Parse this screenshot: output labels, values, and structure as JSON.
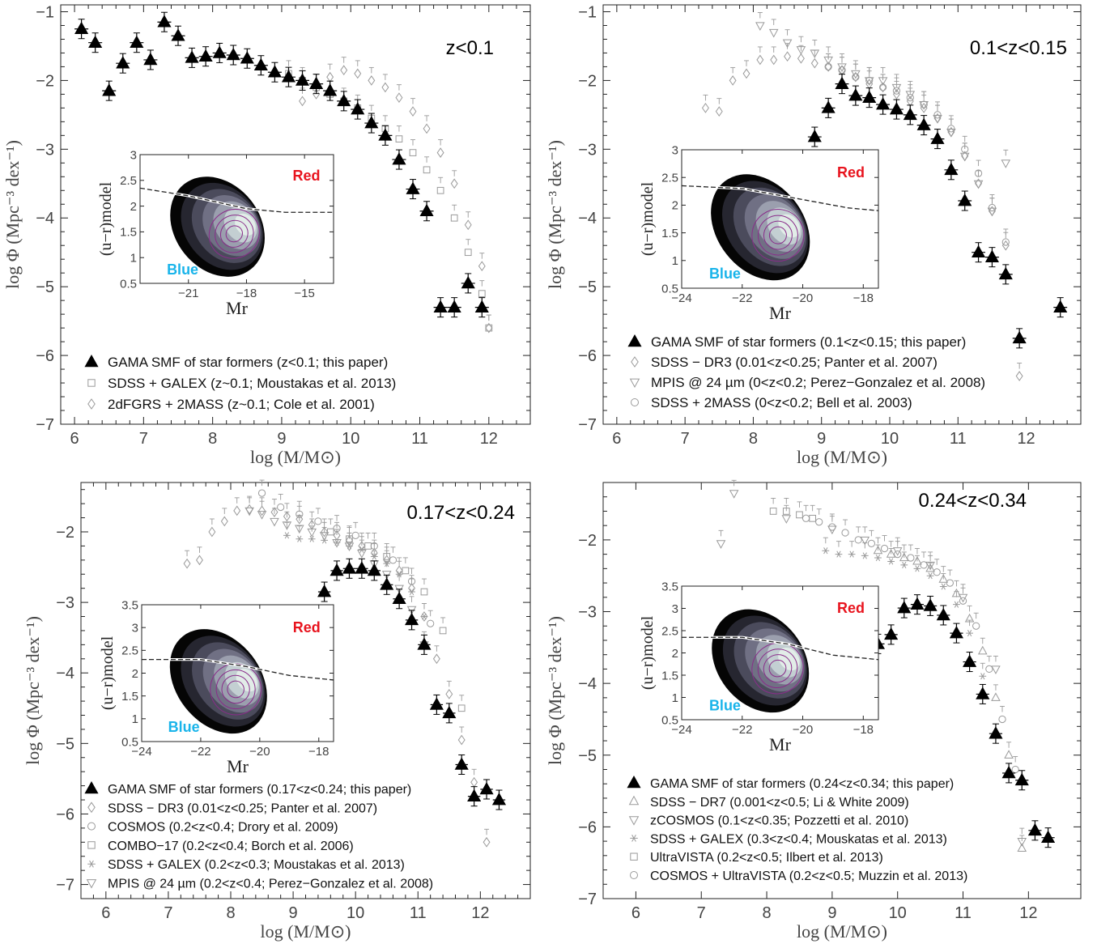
{
  "chart_data": [
    {
      "type": "scatter",
      "redshift_label": "z<0.1",
      "xlabel": "log (M/M⊙)",
      "ylabel": "log Φ (Mpc⁻³ dex⁻¹)",
      "xlim": [
        5.8,
        12.6
      ],
      "ylim": [
        -7.0,
        -0.9
      ],
      "xticks": [
        6,
        7,
        8,
        9,
        10,
        11,
        12
      ],
      "yticks": [
        -1,
        -2,
        -3,
        -4,
        -5,
        -6,
        -7
      ],
      "legend_position": "bottom-left",
      "series": [
        {
          "name": "GAMA SMF of star formers (z<0.1; this paper)",
          "marker": "filled-triangle",
          "x": [
            6.1,
            6.3,
            6.5,
            6.7,
            6.9,
            7.1,
            7.3,
            7.5,
            7.7,
            7.9,
            8.1,
            8.3,
            8.5,
            8.7,
            8.9,
            9.1,
            9.3,
            9.5,
            9.7,
            9.9,
            10.1,
            10.3,
            10.5,
            10.7,
            10.9,
            11.1,
            11.3,
            11.5,
            11.7,
            11.9
          ],
          "y": [
            -1.25,
            -1.45,
            -2.15,
            -1.75,
            -1.45,
            -1.7,
            -1.15,
            -1.35,
            -1.67,
            -1.65,
            -1.6,
            -1.63,
            -1.68,
            -1.78,
            -1.88,
            -1.95,
            -2.0,
            -2.05,
            -2.15,
            -2.3,
            -2.42,
            -2.62,
            -2.8,
            -3.15,
            -3.58,
            -3.9,
            -5.3,
            -5.3,
            -4.95,
            -5.3
          ]
        },
        {
          "name": "SDSS + GALEX (z~0.1; Moustakas et al. 2013)",
          "marker": "open-square",
          "x": [
            9.1,
            9.3,
            9.5,
            9.7,
            9.9,
            10.1,
            10.3,
            10.5,
            10.7,
            10.9,
            11.1,
            11.3,
            11.5,
            11.7,
            11.9,
            12.0
          ],
          "y": [
            -1.9,
            -2.0,
            -2.1,
            -2.2,
            -2.3,
            -2.4,
            -2.55,
            -2.7,
            -2.85,
            -3.05,
            -3.3,
            -3.6,
            -4.0,
            -4.5,
            -5.1,
            -5.6
          ]
        },
        {
          "name": "2dFGRS + 2MASS (z~0.1; Cole et al. 2001)",
          "marker": "open-diamond",
          "x": [
            9.3,
            9.5,
            9.7,
            9.9,
            10.1,
            10.3,
            10.5,
            10.7,
            10.9,
            11.1,
            11.3,
            11.5,
            11.7,
            11.9,
            12.0
          ],
          "y": [
            -2.3,
            -2.2,
            -1.95,
            -1.85,
            -1.9,
            -2.0,
            -2.1,
            -2.25,
            -2.45,
            -2.7,
            -3.05,
            -3.5,
            -4.1,
            -4.7,
            -5.6
          ]
        }
      ],
      "inset": {
        "xlabel": "Mr",
        "ylabel": "(u−r)model",
        "xlim": [
          -23.5,
          -13.5
        ],
        "ylim": [
          0.5,
          3.0
        ],
        "xticks": [
          -21,
          -18,
          -15
        ],
        "yticks": [
          0.5,
          1,
          1.5,
          2,
          2.5,
          3
        ],
        "divider": {
          "x": [
            -23.5,
            -21,
            -18,
            -16,
            -13.5
          ],
          "y": [
            2.35,
            2.2,
            1.95,
            1.88,
            1.88
          ]
        },
        "label_red": "Red",
        "label_blue": "Blue"
      }
    },
    {
      "type": "scatter",
      "redshift_label": "0.1<z<0.15",
      "xlabel": "log (M/M⊙)",
      "ylabel": "log Φ (Mpc⁻³ dex⁻¹)",
      "xlim": [
        5.8,
        12.8
      ],
      "ylim": [
        -7.0,
        -0.9
      ],
      "xticks": [
        6,
        7,
        8,
        9,
        10,
        11,
        12
      ],
      "yticks": [
        -1,
        -2,
        -3,
        -4,
        -5,
        -6,
        -7
      ],
      "legend_position": "bottom-left",
      "series": [
        {
          "name": "GAMA SMF of star formers (0.1<z<0.15; this paper)",
          "marker": "filled-triangle",
          "x": [
            8.9,
            9.1,
            9.3,
            9.5,
            9.7,
            9.9,
            10.1,
            10.3,
            10.5,
            10.7,
            10.9,
            11.1,
            11.3,
            11.5,
            11.7,
            11.9,
            12.5
          ],
          "y": [
            -2.82,
            -2.4,
            -2.05,
            -2.22,
            -2.25,
            -2.35,
            -2.42,
            -2.5,
            -2.65,
            -2.85,
            -3.3,
            -3.75,
            -4.5,
            -4.57,
            -4.82,
            -5.75,
            -5.3
          ]
        },
        {
          "name": "SDSS − DR3 (0.01<z<0.25; Panter et al. 2007)",
          "marker": "open-diamond",
          "x": [
            7.3,
            7.5,
            7.7,
            7.9,
            8.1,
            8.3,
            8.5,
            8.7,
            8.9,
            9.1,
            9.3,
            9.5,
            9.7,
            9.9,
            10.1,
            10.3,
            10.5,
            10.7,
            10.9,
            11.1,
            11.3,
            11.5,
            11.7,
            11.9
          ],
          "y": [
            -2.4,
            -2.45,
            -2.0,
            -1.9,
            -1.7,
            -1.7,
            -1.65,
            -1.68,
            -1.75,
            -1.8,
            -1.85,
            -1.95,
            -2.05,
            -2.1,
            -2.2,
            -2.3,
            -2.4,
            -2.55,
            -2.75,
            -3.1,
            -3.5,
            -3.9,
            -4.4,
            -6.3
          ]
        },
        {
          "name": "MPIS @ 24 µm (0<z<0.2; Perez−Gonzalez et al. 2008)",
          "marker": "open-triangle-down",
          "x": [
            8.1,
            8.3,
            8.5,
            8.7,
            8.9,
            9.1,
            9.3,
            9.5,
            9.7,
            9.9,
            10.1,
            10.3,
            10.5,
            10.7,
            10.9,
            11.1,
            11.3,
            11.5,
            11.7
          ],
          "y": [
            -1.2,
            -1.3,
            -1.45,
            -1.55,
            -1.6,
            -1.7,
            -1.8,
            -1.9,
            -2.0,
            -2.0,
            -2.1,
            -2.2,
            -2.35,
            -2.55,
            -2.75,
            -3.1,
            -3.5,
            -3.9,
            -3.2
          ]
        },
        {
          "name": "SDSS + 2MASS (0<z<0.2; Bell et al. 2003)",
          "marker": "open-circle",
          "x": [
            9.1,
            9.3,
            9.5,
            9.7,
            9.9,
            10.1,
            10.3,
            10.5,
            10.7,
            10.9,
            11.1,
            11.3,
            11.5,
            11.7
          ],
          "y": [
            -1.8,
            -1.85,
            -1.95,
            -2.0,
            -2.1,
            -2.15,
            -2.25,
            -2.35,
            -2.5,
            -2.7,
            -3.0,
            -3.35,
            -3.85,
            -4.35
          ]
        }
      ],
      "inset": {
        "xlabel": "Mr",
        "ylabel": "(u−r)model",
        "xlim": [
          -24,
          -17.5
        ],
        "ylim": [
          0.5,
          3.0
        ],
        "xticks": [
          -24,
          -22,
          -20,
          -18
        ],
        "yticks": [
          0.5,
          1,
          1.5,
          2,
          2.5,
          3
        ],
        "divider": {
          "x": [
            -24,
            -22,
            -20,
            -18.5,
            -17.5
          ],
          "y": [
            2.35,
            2.3,
            2.1,
            1.95,
            1.9
          ]
        },
        "label_red": "Red",
        "label_blue": "Blue"
      }
    },
    {
      "type": "scatter",
      "redshift_label": "0.17<z<0.24",
      "xlabel": "log (M/M⊙)",
      "ylabel": "log Φ (Mpc⁻³ dex⁻¹)",
      "xlim": [
        5.6,
        12.8
      ],
      "ylim": [
        -7.2,
        -1.3
      ],
      "xticks": [
        6,
        7,
        8,
        9,
        10,
        11,
        12
      ],
      "yticks": [
        -2,
        -3,
        -4,
        -5,
        -6,
        -7
      ],
      "legend_position": "bottom-left",
      "series": [
        {
          "name": "GAMA SMF of star formers (0.17<z<0.24; this paper)",
          "marker": "filled-triangle",
          "x": [
            9.5,
            9.7,
            9.9,
            10.1,
            10.3,
            10.5,
            10.7,
            10.9,
            11.1,
            11.3,
            11.5,
            11.7,
            11.9,
            12.1,
            12.3
          ],
          "y": [
            -2.85,
            -2.55,
            -2.52,
            -2.52,
            -2.55,
            -2.75,
            -2.95,
            -3.25,
            -3.6,
            -4.45,
            -4.57,
            -5.3,
            -5.75,
            -5.65,
            -5.8
          ]
        },
        {
          "name": "SDSS − DR3 (0.01<z<0.25; Panter et al. 2007)",
          "marker": "open-diamond",
          "x": [
            7.3,
            7.5,
            7.7,
            7.9,
            8.1,
            8.3,
            8.5,
            8.7,
            8.9,
            9.1,
            9.3,
            9.5,
            9.7,
            9.9,
            10.1,
            10.3,
            10.5,
            10.7,
            10.9,
            11.1,
            11.3,
            11.5,
            11.7,
            11.9,
            12.1
          ],
          "y": [
            -2.45,
            -2.4,
            -2.0,
            -1.85,
            -1.7,
            -1.68,
            -1.7,
            -1.72,
            -1.78,
            -1.82,
            -1.9,
            -2.0,
            -2.05,
            -2.12,
            -2.2,
            -2.3,
            -2.4,
            -2.55,
            -2.8,
            -3.2,
            -3.8,
            -4.3,
            -4.95,
            -5.55,
            -6.4
          ]
        },
        {
          "name": "COSMOS (0.2<z<0.4; Drory et al. 2009)",
          "marker": "open-circle",
          "x": [
            8.5,
            8.8,
            9.1,
            9.4,
            9.7,
            10.0,
            10.3,
            10.6,
            10.9,
            11.2
          ],
          "y": [
            -1.45,
            -1.65,
            -1.75,
            -1.85,
            -1.95,
            -2.05,
            -2.2,
            -2.4,
            -2.7,
            -3.3
          ]
        },
        {
          "name": "COMBO−17 (0.2<z<0.4; Borch et al. 2006)",
          "marker": "open-square",
          "x": [
            9.6,
            9.9,
            10.2,
            10.5,
            10.8,
            11.1,
            11.4,
            11.7
          ],
          "y": [
            -2.0,
            -2.1,
            -2.2,
            -2.35,
            -2.55,
            -2.85,
            -3.4,
            -4.5
          ]
        },
        {
          "name": "SDSS + GALEX (0.2<z<0.3; Moustakas et al. 2013)",
          "marker": "star",
          "x": [
            8.9,
            9.1,
            9.3,
            9.5,
            9.7,
            9.9,
            10.1,
            10.3,
            10.5,
            10.7,
            10.9,
            11.1
          ],
          "y": [
            -2.05,
            -2.1,
            -2.1,
            -2.12,
            -2.15,
            -2.2,
            -2.25,
            -2.35,
            -2.45,
            -2.6,
            -2.85,
            -3.2
          ]
        },
        {
          "name": "MPIS @ 24 µm (0.2<z<0.4; Perez−Gonzalez et al. 2008)",
          "marker": "open-triangle-down",
          "x": [
            8.3,
            8.5,
            8.7,
            8.9,
            9.1,
            9.3,
            9.5,
            9.7,
            9.9,
            10.1,
            10.3,
            10.5,
            10.7,
            10.9,
            11.1
          ],
          "y": [
            -1.7,
            -1.75,
            -1.85,
            -1.9,
            -1.95,
            -2.0,
            -2.05,
            -2.15,
            -2.2,
            -2.3,
            -2.45,
            -2.6,
            -2.8,
            -3.1,
            -3.6
          ]
        }
      ],
      "inset": {
        "xlabel": "Mr",
        "ylabel": "(u−r)model",
        "xlim": [
          -24,
          -17.5
        ],
        "ylim": [
          0.5,
          3.5
        ],
        "xticks": [
          -24,
          -22,
          -20,
          -18
        ],
        "yticks": [
          0.5,
          1,
          1.5,
          2,
          2.5,
          3,
          3.5
        ],
        "divider": {
          "x": [
            -24,
            -22,
            -20.5,
            -19,
            -17.5
          ],
          "y": [
            2.3,
            2.3,
            2.15,
            1.95,
            1.85
          ]
        },
        "label_red": "Red",
        "label_blue": "Blue"
      }
    },
    {
      "type": "scatter",
      "redshift_label": "0.24<z<0.34",
      "xlabel": "log (M/M⊙)",
      "ylabel": "log Φ (Mpc⁻³ dex⁻¹)",
      "xlim": [
        5.5,
        12.8
      ],
      "ylim": [
        -7.0,
        -1.2
      ],
      "xticks": [
        6,
        7,
        8,
        9,
        10,
        11,
        12
      ],
      "yticks": [
        -2,
        -3,
        -4,
        -5,
        -6,
        -7
      ],
      "legend_position": "bottom-left",
      "series": [
        {
          "name": "GAMA SMF of star formers (0.24<z<0.34; this paper)",
          "marker": "filled-triangle",
          "x": [
            9.7,
            9.9,
            10.1,
            10.3,
            10.5,
            10.7,
            10.9,
            11.1,
            11.3,
            11.5,
            11.7,
            11.9,
            12.1,
            12.3
          ],
          "y": [
            -3.45,
            -3.32,
            -2.95,
            -2.9,
            -2.92,
            -3.05,
            -3.3,
            -3.7,
            -4.15,
            -4.7,
            -5.25,
            -5.35,
            -6.05,
            -6.15
          ]
        },
        {
          "name": "SDSS − DR7 (0.001<z<0.5; Li & White 2009)",
          "marker": "open-triangle-up",
          "x": [
            9.7,
            9.9,
            10.1,
            10.3,
            10.5,
            10.7,
            10.9,
            11.1,
            11.3,
            11.5,
            11.7,
            11.9
          ],
          "y": [
            -2.15,
            -2.2,
            -2.25,
            -2.3,
            -2.4,
            -2.55,
            -2.75,
            -3.1,
            -3.55,
            -4.2,
            -5.0,
            -6.3
          ]
        },
        {
          "name": "zCOSMOS (0.1<z<0.35; Pozzetti et al. 2010)",
          "marker": "open-triangle-down",
          "x": [
            7.3,
            7.5,
            8.3,
            9.0,
            9.5,
            10.0,
            10.5,
            11.0,
            11.5,
            11.9
          ],
          "y": [
            -2.05,
            -1.35,
            -1.7,
            -1.85,
            -2.0,
            -2.15,
            -2.35,
            -2.8,
            -3.8,
            -6.2
          ]
        },
        {
          "name": "SDSS + GALEX (0.3<z<0.4; Mouskatas et al. 2013)",
          "marker": "star",
          "x": [
            8.9,
            9.1,
            9.3,
            9.5,
            9.7,
            9.9,
            10.1,
            10.3,
            10.5,
            10.7,
            10.9,
            11.1,
            11.3
          ],
          "y": [
            -2.15,
            -2.2,
            -2.2,
            -2.22,
            -2.25,
            -2.3,
            -2.35,
            -2.4,
            -2.5,
            -2.65,
            -2.9,
            -3.3,
            -3.9
          ]
        },
        {
          "name": "UltraVISTA (0.2<z<0.5; Ilbert et al. 2013)",
          "marker": "open-square",
          "x": [
            8.1,
            8.3,
            8.5,
            8.7
          ],
          "y": [
            -1.6,
            -1.6,
            -1.65,
            -1.7
          ]
        },
        {
          "name": "COSMOS + UltraVISTA (0.2<z<0.5; Muzzin et al. 2013)",
          "marker": "open-circle",
          "x": [
            8.6,
            8.8,
            9.0,
            9.2,
            9.4,
            9.6,
            9.8,
            10.0,
            10.2,
            10.4,
            10.6,
            10.8,
            11.0,
            11.2,
            11.4,
            11.6,
            11.8
          ],
          "y": [
            -1.7,
            -1.75,
            -1.82,
            -1.9,
            -2.0,
            -2.05,
            -2.12,
            -2.2,
            -2.25,
            -2.35,
            -2.45,
            -2.6,
            -2.85,
            -3.2,
            -3.8,
            -4.5,
            -5.2
          ]
        }
      ],
      "inset": {
        "xlabel": "Mr",
        "ylabel": "(u−r)model",
        "xlim": [
          -24,
          -17.5
        ],
        "ylim": [
          0.5,
          3.5
        ],
        "xticks": [
          -24,
          -22,
          -20,
          -18
        ],
        "yticks": [
          0.5,
          1,
          1.5,
          2,
          2.5,
          3,
          3.5
        ],
        "divider": {
          "x": [
            -24,
            -22,
            -20.5,
            -19,
            -17.5
          ],
          "y": [
            2.35,
            2.35,
            2.2,
            1.95,
            1.85
          ]
        },
        "label_red": "Red",
        "label_blue": "Blue"
      }
    }
  ],
  "colors": {
    "gama": "#000000",
    "literature": "#9a9a9a",
    "frame": "#222222",
    "tick_label": "#444444",
    "red_label": "#e8141e",
    "blue_label": "#19b4ea",
    "contour": "#8a2d8a"
  }
}
